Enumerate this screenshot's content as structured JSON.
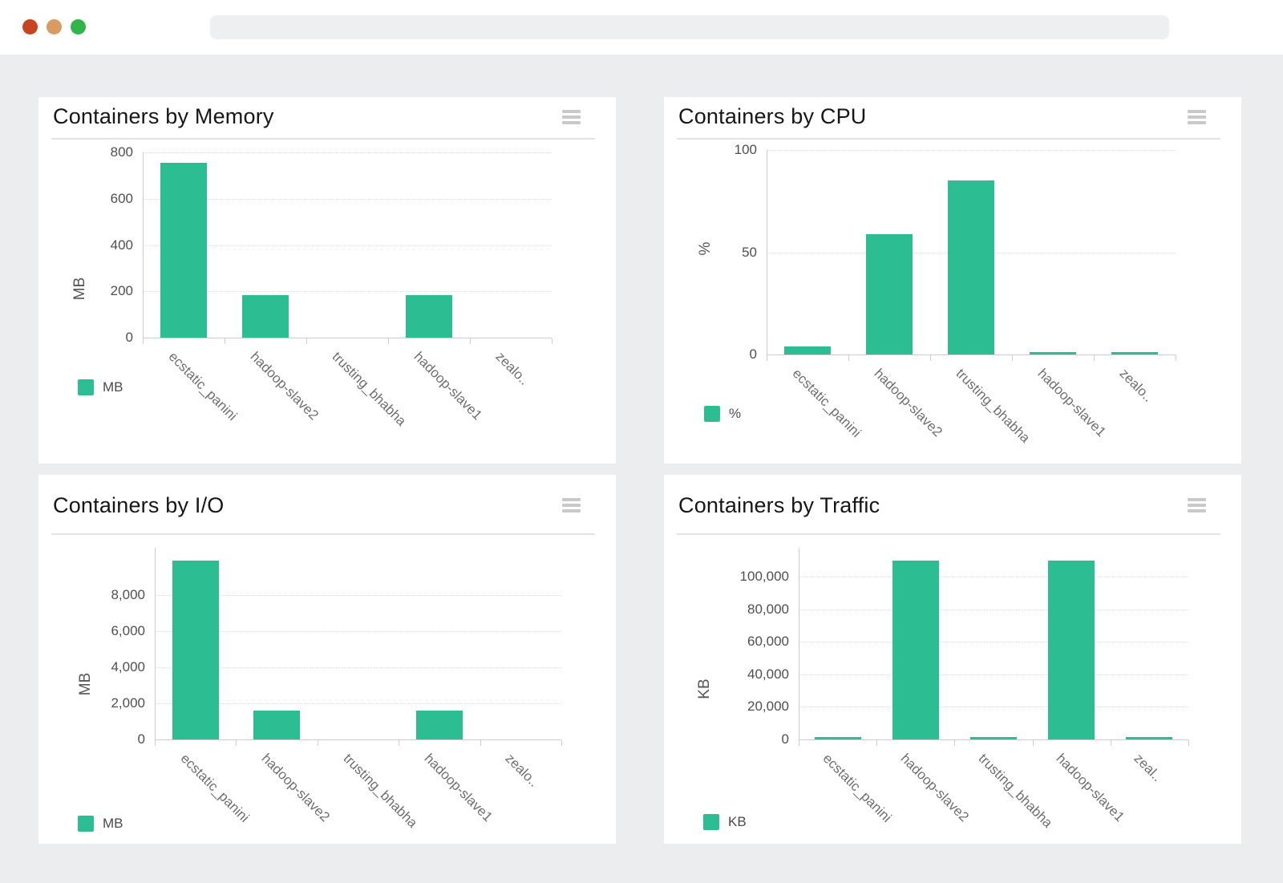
{
  "browser": {
    "traffic_lights": [
      {
        "name": "close",
        "color": "#c8441f"
      },
      {
        "name": "minimize",
        "color": "#d89b62"
      },
      {
        "name": "maximize",
        "color": "#2fb54a"
      }
    ],
    "address_bar_value": ""
  },
  "theme": {
    "bar_color": "#2cbe92",
    "page_background": "#ebedee",
    "card_background": "#ffffff"
  },
  "icons": {
    "card_menu": "hamburger-menu-icon"
  },
  "chart_data": [
    {
      "type": "bar",
      "title": "Containers by Memory",
      "ylabel": "MB",
      "legend": "MB",
      "categories": [
        "ecstatic_panini",
        "hadoop-slave2",
        "trusting_bhabha",
        "hadoop-slave1",
        "zealo.."
      ],
      "values": [
        755,
        185,
        0,
        185,
        0
      ],
      "ylim": [
        0,
        800
      ],
      "yticks": [
        {
          "value": 0,
          "label": "0"
        },
        {
          "value": 200,
          "label": "200"
        },
        {
          "value": 400,
          "label": "400"
        },
        {
          "value": 600,
          "label": "600"
        },
        {
          "value": 800,
          "label": "800"
        }
      ],
      "grid": "dotted-horizontal",
      "legend_position": "bottom-left"
    },
    {
      "type": "bar",
      "title": "Containers by CPU",
      "ylabel": "%",
      "legend": "%",
      "categories": [
        "ecstatic_panini",
        "hadoop-slave2",
        "trusting_bhabha",
        "hadoop-slave1",
        "zealo.."
      ],
      "values": [
        4,
        59,
        85,
        1,
        1
      ],
      "ylim": [
        0,
        100
      ],
      "yticks": [
        {
          "value": 0,
          "label": "0"
        },
        {
          "value": 50,
          "label": "50"
        },
        {
          "value": 100,
          "label": "100"
        }
      ],
      "grid": "dotted-horizontal",
      "legend_position": "bottom-left"
    },
    {
      "type": "bar",
      "title": "Containers by I/O",
      "ylabel": "MB",
      "legend": "MB",
      "categories": [
        "ecstatic_panini",
        "hadoop-slave2",
        "trusting_bhabha",
        "hadoop-slave1",
        "zealo.."
      ],
      "values": [
        9900,
        1600,
        0,
        1600,
        0
      ],
      "ylim": [
        0,
        10600
      ],
      "yticks": [
        {
          "value": 0,
          "label": "0"
        },
        {
          "value": 2000,
          "label": "2,000"
        },
        {
          "value": 4000,
          "label": "4,000"
        },
        {
          "value": 6000,
          "label": "6,000"
        },
        {
          "value": 8000,
          "label": "8,000"
        }
      ],
      "grid": "dotted-horizontal",
      "legend_position": "bottom-left"
    },
    {
      "type": "bar",
      "title": "Containers by Traffic",
      "ylabel": "KB",
      "legend": "KB",
      "categories": [
        "ecstatic_panini",
        "hadoop-slave2",
        "trusting_bhabha",
        "hadoop-slave1",
        "zeal.."
      ],
      "values": [
        600,
        110000,
        600,
        110000,
        600
      ],
      "ylim": [
        0,
        118000
      ],
      "yticks": [
        {
          "value": 0,
          "label": "0"
        },
        {
          "value": 20000,
          "label": "20,000"
        },
        {
          "value": 40000,
          "label": "40,000"
        },
        {
          "value": 60000,
          "label": "60,000"
        },
        {
          "value": 80000,
          "label": "80,000"
        },
        {
          "value": 100000,
          "label": "100,000"
        }
      ],
      "grid": "dotted-horizontal",
      "legend_position": "bottom-left"
    }
  ]
}
